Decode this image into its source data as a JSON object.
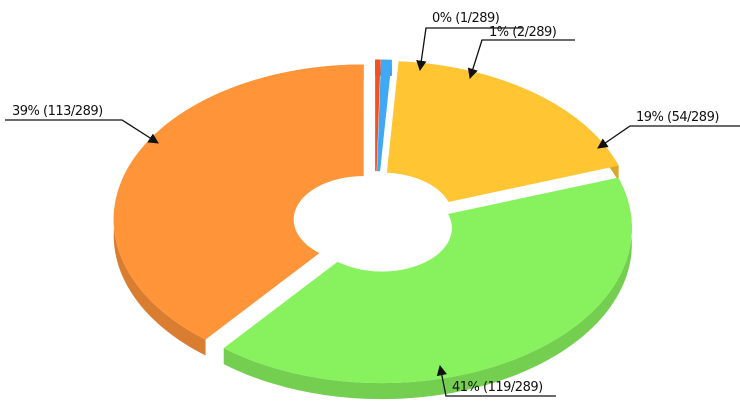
{
  "chart_data": {
    "type": "pie",
    "donut": true,
    "three_d": true,
    "categories": [
      null,
      null,
      null,
      null,
      null
    ],
    "values": [
      1,
      2,
      54,
      119,
      113
    ],
    "value_labels": [
      "0% (1/289)",
      "1% (2/289)",
      "19% (54/289)",
      "41% (119/289)",
      "39% (113/289)"
    ],
    "colors": [
      "#f4511e",
      "#3fa9f5",
      "#ffc533",
      "#88f25e",
      "#ff9439"
    ]
  }
}
